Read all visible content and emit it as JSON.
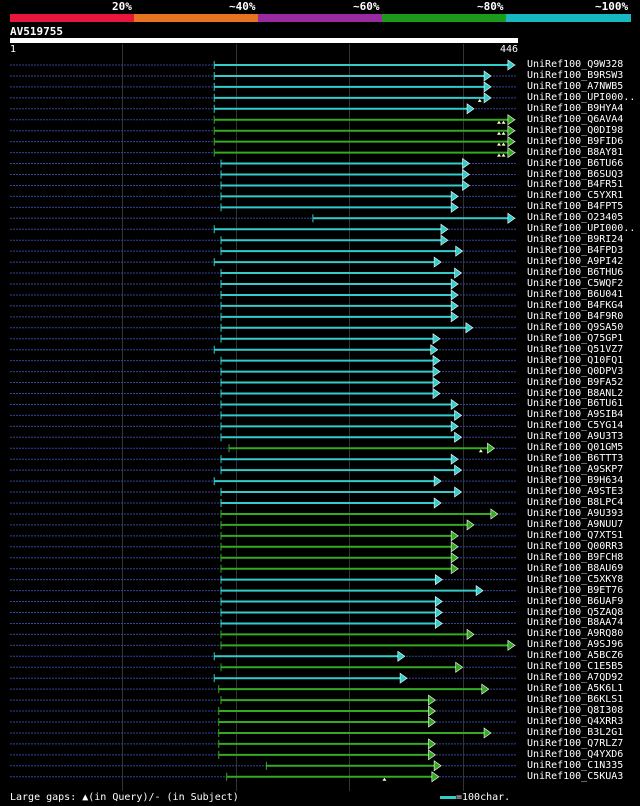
{
  "chart_data": {
    "type": "alignment",
    "query": {
      "name": "AV519755",
      "start": 1,
      "end": 446,
      "start_label": "1",
      "end_label": "446"
    },
    "identity_scale": {
      "labels": [
        "20%",
        "~40%",
        "~60%",
        "~80%",
        "~100%"
      ],
      "colors": [
        "#e8163c",
        "#e8731e",
        "#9a2aa0",
        "#1c9a1c",
        "#18b8c0"
      ]
    },
    "colors": {
      "cyan": "#33cccc",
      "green": "#33aa22",
      "dotted": "#334499",
      "gap": "#ffffcc"
    },
    "grid_positions": [
      100,
      200,
      300,
      400
    ],
    "hits": [
      {
        "name": "UniRef100_Q9W328",
        "start": 181,
        "end": 446,
        "color": "cyan",
        "gaps": []
      },
      {
        "name": "UniRef100_B9RSW3",
        "start": 181,
        "end": 425,
        "color": "cyan",
        "gaps": []
      },
      {
        "name": "UniRef100_A7NWB5",
        "start": 181,
        "end": 425,
        "color": "cyan",
        "gaps": []
      },
      {
        "name": "UniRef100_UPI000..",
        "start": 181,
        "end": 425,
        "color": "cyan",
        "gaps": [
          415
        ]
      },
      {
        "name": "UniRef100_B9HYA4",
        "start": 181,
        "end": 410,
        "color": "cyan",
        "gaps": []
      },
      {
        "name": "UniRef100_Q6AVA4",
        "start": 181,
        "end": 446,
        "color": "green",
        "gaps": [
          432,
          436
        ]
      },
      {
        "name": "UniRef100_Q0DI98",
        "start": 181,
        "end": 446,
        "color": "green",
        "gaps": [
          432,
          436
        ]
      },
      {
        "name": "UniRef100_B9FID6",
        "start": 181,
        "end": 446,
        "color": "green",
        "gaps": [
          432,
          436
        ]
      },
      {
        "name": "UniRef100_B8AY81",
        "start": 181,
        "end": 446,
        "color": "green",
        "gaps": [
          432,
          436
        ]
      },
      {
        "name": "UniRef100_B6TU66",
        "start": 187,
        "end": 406,
        "color": "cyan",
        "gaps": []
      },
      {
        "name": "UniRef100_B6SUQ3",
        "start": 187,
        "end": 406,
        "color": "cyan",
        "gaps": []
      },
      {
        "name": "UniRef100_B4FR51",
        "start": 187,
        "end": 406,
        "color": "cyan",
        "gaps": []
      },
      {
        "name": "UniRef100_C5YXR1",
        "start": 187,
        "end": 396,
        "color": "cyan",
        "gaps": []
      },
      {
        "name": "UniRef100_B4FPT5",
        "start": 187,
        "end": 396,
        "color": "cyan",
        "gaps": []
      },
      {
        "name": "UniRef100_O23405",
        "start": 268,
        "end": 446,
        "color": "cyan",
        "gaps": []
      },
      {
        "name": "UniRef100_UPI000..",
        "start": 181,
        "end": 387,
        "color": "cyan",
        "gaps": []
      },
      {
        "name": "UniRef100_B9RI24",
        "start": 187,
        "end": 387,
        "color": "cyan",
        "gaps": []
      },
      {
        "name": "UniRef100_B4FPD3",
        "start": 187,
        "end": 400,
        "color": "cyan",
        "gaps": []
      },
      {
        "name": "UniRef100_A9PI42",
        "start": 181,
        "end": 381,
        "color": "cyan",
        "gaps": []
      },
      {
        "name": "UniRef100_B6THU6",
        "start": 187,
        "end": 399,
        "color": "cyan",
        "gaps": []
      },
      {
        "name": "UniRef100_C5WQF2",
        "start": 187,
        "end": 396,
        "color": "cyan",
        "gaps": []
      },
      {
        "name": "UniRef100_B6U041",
        "start": 187,
        "end": 396,
        "color": "cyan",
        "gaps": []
      },
      {
        "name": "UniRef100_B4FKG4",
        "start": 187,
        "end": 396,
        "color": "cyan",
        "gaps": []
      },
      {
        "name": "UniRef100_B4F9R0",
        "start": 187,
        "end": 396,
        "color": "cyan",
        "gaps": []
      },
      {
        "name": "UniRef100_Q9SA50",
        "start": 187,
        "end": 409,
        "color": "cyan",
        "gaps": []
      },
      {
        "name": "UniRef100_Q75GP1",
        "start": 187,
        "end": 380,
        "color": "cyan",
        "gaps": []
      },
      {
        "name": "UniRef100_Q51VZ7",
        "start": 181,
        "end": 378,
        "color": "cyan",
        "gaps": []
      },
      {
        "name": "UniRef100_Q10FQ1",
        "start": 187,
        "end": 380,
        "color": "cyan",
        "gaps": []
      },
      {
        "name": "UniRef100_Q0DPV3",
        "start": 187,
        "end": 380,
        "color": "cyan",
        "gaps": []
      },
      {
        "name": "UniRef100_B9FA52",
        "start": 187,
        "end": 380,
        "color": "cyan",
        "gaps": []
      },
      {
        "name": "UniRef100_B8ANL2",
        "start": 187,
        "end": 380,
        "color": "cyan",
        "gaps": []
      },
      {
        "name": "UniRef100_B6TU61",
        "start": 187,
        "end": 396,
        "color": "cyan",
        "gaps": []
      },
      {
        "name": "UniRef100_A9SIB4",
        "start": 187,
        "end": 399,
        "color": "cyan",
        "gaps": []
      },
      {
        "name": "UniRef100_C5YG14",
        "start": 187,
        "end": 396,
        "color": "cyan",
        "gaps": []
      },
      {
        "name": "UniRef100_A9U3T3",
        "start": 187,
        "end": 399,
        "color": "cyan",
        "gaps": []
      },
      {
        "name": "UniRef100_Q01GM5",
        "start": 194,
        "end": 428,
        "color": "green",
        "gaps": [
          416
        ]
      },
      {
        "name": "UniRef100_B6TTT3",
        "start": 187,
        "end": 396,
        "color": "cyan",
        "gaps": []
      },
      {
        "name": "UniRef100_A9SKP7",
        "start": 187,
        "end": 399,
        "color": "cyan",
        "gaps": []
      },
      {
        "name": "UniRef100_B9H634",
        "start": 181,
        "end": 381,
        "color": "cyan",
        "gaps": []
      },
      {
        "name": "UniRef100_A9STE3",
        "start": 187,
        "end": 399,
        "color": "cyan",
        "gaps": []
      },
      {
        "name": "UniRef100_B8LPC4",
        "start": 187,
        "end": 381,
        "color": "cyan",
        "gaps": []
      },
      {
        "name": "UniRef100_A9U393",
        "start": 187,
        "end": 431,
        "color": "green",
        "gaps": []
      },
      {
        "name": "UniRef100_A9NUU7",
        "start": 187,
        "end": 410,
        "color": "green",
        "gaps": []
      },
      {
        "name": "UniRef100_Q7XTS1",
        "start": 187,
        "end": 396,
        "color": "green",
        "gaps": []
      },
      {
        "name": "UniRef100_Q00RR3",
        "start": 187,
        "end": 396,
        "color": "green",
        "gaps": []
      },
      {
        "name": "UniRef100_B9FCH8",
        "start": 187,
        "end": 396,
        "color": "green",
        "gaps": []
      },
      {
        "name": "UniRef100_B8AU69",
        "start": 187,
        "end": 396,
        "color": "green",
        "gaps": []
      },
      {
        "name": "UniRef100_C5XKY8",
        "start": 187,
        "end": 382,
        "color": "cyan",
        "gaps": []
      },
      {
        "name": "UniRef100_B9ET76",
        "start": 187,
        "end": 418,
        "color": "cyan",
        "gaps": []
      },
      {
        "name": "UniRef100_B6UAF9",
        "start": 187,
        "end": 382,
        "color": "cyan",
        "gaps": []
      },
      {
        "name": "UniRef100_Q5ZAQ8",
        "start": 187,
        "end": 382,
        "color": "cyan",
        "gaps": []
      },
      {
        "name": "UniRef100_B8AA74",
        "start": 187,
        "end": 382,
        "color": "cyan",
        "gaps": []
      },
      {
        "name": "UniRef100_A9RQ80",
        "start": 187,
        "end": 410,
        "color": "green",
        "gaps": []
      },
      {
        "name": "UniRef100_A9SJ96",
        "start": 187,
        "end": 446,
        "color": "green",
        "gaps": []
      },
      {
        "name": "UniRef100_A5BCZ6",
        "start": 181,
        "end": 349,
        "color": "cyan",
        "gaps": []
      },
      {
        "name": "UniRef100_C1E5B5",
        "start": 187,
        "end": 400,
        "color": "green",
        "gaps": []
      },
      {
        "name": "UniRef100_A7QD92",
        "start": 181,
        "end": 351,
        "color": "cyan",
        "gaps": []
      },
      {
        "name": "UniRef100_A5K6L1",
        "start": 185,
        "end": 423,
        "color": "green",
        "gaps": []
      },
      {
        "name": "UniRef100_B6KLS1",
        "start": 187,
        "end": 376,
        "color": "green",
        "gaps": []
      },
      {
        "name": "UniRef100_Q8I308",
        "start": 185,
        "end": 376,
        "color": "green",
        "gaps": []
      },
      {
        "name": "UniRef100_Q4XRR3",
        "start": 185,
        "end": 376,
        "color": "green",
        "gaps": []
      },
      {
        "name": "UniRef100_B3L2G1",
        "start": 185,
        "end": 425,
        "color": "green",
        "gaps": []
      },
      {
        "name": "UniRef100_Q7RLZ7",
        "start": 185,
        "end": 376,
        "color": "green",
        "gaps": []
      },
      {
        "name": "UniRef100_Q4YXD6",
        "start": 185,
        "end": 376,
        "color": "green",
        "gaps": []
      },
      {
        "name": "UniRef100_C1N335",
        "start": 227,
        "end": 381,
        "color": "green",
        "gaps": []
      },
      {
        "name": "UniRef100_C5KUA3",
        "start": 192,
        "end": 379,
        "color": "green",
        "gaps": [
          331
        ]
      }
    ],
    "footer": {
      "gap_legend": "Large gaps: ▲(in Query)/- (in Subject)",
      "scale_legend": "=100char."
    }
  }
}
